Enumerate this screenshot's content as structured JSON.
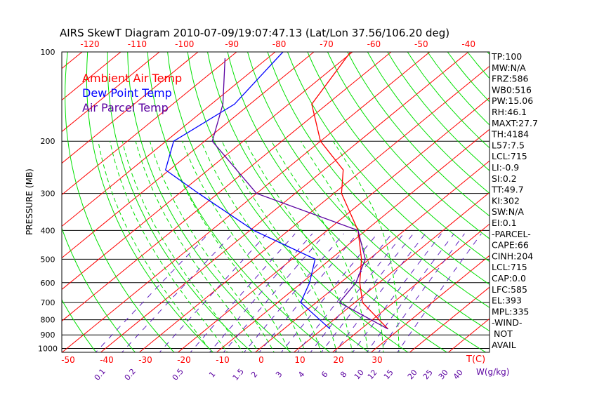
{
  "chart_data": {
    "type": "line",
    "title": "AIRS SkewT Diagram 2010-07-09/19:07:47.13 (Lat/Lon 37.56/106.20 deg)",
    "ylabel": "PRESSURE (MB)",
    "xlabel": "T(C)",
    "mixing_ratio_label": "W(g/kg)",
    "ylim": [
      1000,
      100
    ],
    "pressure_ticks": [
      100,
      200,
      300,
      400,
      500,
      600,
      700,
      800,
      900,
      1000
    ],
    "bottom_temp_ticks": [
      -50,
      -40,
      -30,
      -20,
      -10,
      0,
      10,
      20,
      30
    ],
    "top_temp_ticks": [
      -120,
      -110,
      -100,
      -90,
      -80,
      -70,
      -60,
      -50,
      -40
    ],
    "mixing_ratio_ticks": [
      "0.1",
      "0.2",
      "0.5",
      "1",
      "1.5",
      "2",
      "3",
      "4",
      "6",
      "8",
      "10",
      "12",
      "15",
      "20",
      "25",
      "30",
      "40"
    ],
    "legend": [
      {
        "name": "Ambient Air Temp",
        "color": "#ff0000"
      },
      {
        "name": "Dew Point Temp",
        "color": "#0000ff"
      },
      {
        "name": "Air Parcel Temp",
        "color": "#5a00a0"
      }
    ],
    "series": [
      {
        "name": "Ambient Air Temp",
        "points": [
          [
            100,
            -70.5
          ],
          [
            150,
            -64
          ],
          [
            200,
            -50
          ],
          [
            250,
            -35
          ],
          [
            300,
            -28
          ],
          [
            400,
            -12
          ],
          [
            500,
            -2
          ],
          [
            600,
            5
          ],
          [
            700,
            12
          ],
          [
            860,
            27
          ]
        ]
      },
      {
        "name": "Dew Point Temp",
        "points": [
          [
            100,
            -88
          ],
          [
            150,
            -84
          ],
          [
            200,
            -88
          ],
          [
            250,
            -81
          ],
          [
            300,
            -65
          ],
          [
            400,
            -39
          ],
          [
            500,
            -14
          ],
          [
            600,
            -8
          ],
          [
            700,
            -4
          ],
          [
            860,
            12
          ]
        ]
      },
      {
        "name": "Air Parcel Temp",
        "points": [
          [
            105,
            -101
          ],
          [
            150,
            -87
          ],
          [
            200,
            -78
          ],
          [
            300,
            -50
          ],
          [
            400,
            -12
          ],
          [
            500,
            -1
          ],
          [
            600,
            4
          ],
          [
            700,
            6
          ],
          [
            860,
            27
          ]
        ]
      }
    ]
  },
  "stats": [
    "TP:100",
    "MW:N/A",
    "FRZ:586",
    "WB0:516",
    "PW:15.06",
    "RH:46.1",
    "MAXT:27.7",
    "TH:4184",
    "L57:7.5",
    "LCL:715",
    "LI:-0.9",
    "SI:0.2",
    "TT:49.7",
    "KI:302",
    "SW:N/A",
    "EI:0.1",
    "-PARCEL-",
    "CAPE:66",
    "CINH:204",
    "LCL:715",
    "CAP:0.0",
    "LFC:585",
    "EL:393",
    "MPL:335",
    "-WIND-",
    "NOT",
    "AVAIL"
  ]
}
